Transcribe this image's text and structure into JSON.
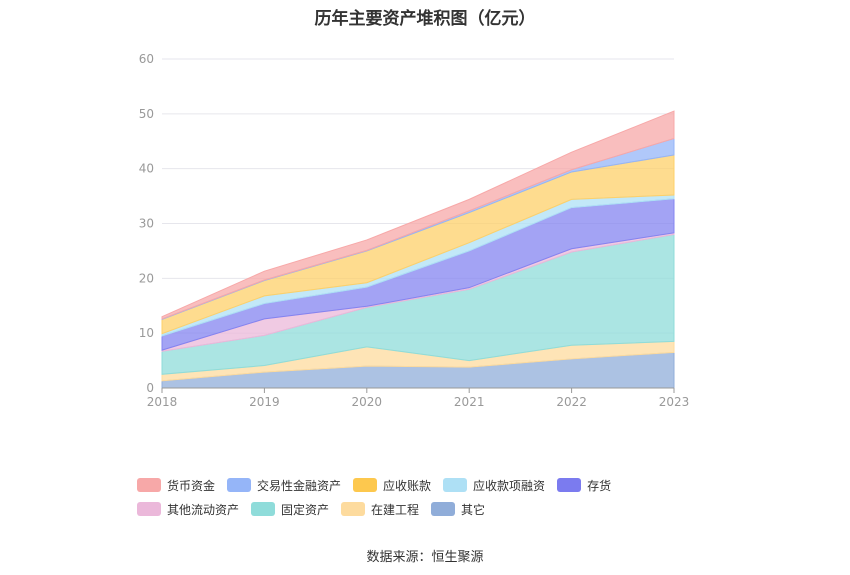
{
  "chart_data": {
    "type": "area",
    "stacked": true,
    "title": "历年主要资产堆积图（亿元）",
    "x": [
      "2018",
      "2019",
      "2020",
      "2021",
      "2022",
      "2023"
    ],
    "ylim": [
      0,
      60
    ],
    "yticks": [
      0,
      10,
      20,
      30,
      40,
      50,
      60
    ],
    "grid": true,
    "legend_position": "bottom",
    "series": [
      {
        "name": "其它",
        "color": "#90ADD9",
        "values": [
          1.3,
          2.9,
          4.0,
          3.8,
          5.3,
          6.5
        ]
      },
      {
        "name": "在建工程",
        "color": "#FDDB9E",
        "values": [
          1.2,
          1.2,
          3.5,
          1.2,
          2.5,
          2.0
        ]
      },
      {
        "name": "固定资产",
        "color": "#8FDCDA",
        "values": [
          4.2,
          5.5,
          7.2,
          13.0,
          17.0,
          19.5
        ]
      },
      {
        "name": "其他流动资产",
        "color": "#EBB8DA",
        "values": [
          0.2,
          3.0,
          0.2,
          0.3,
          0.6,
          0.3
        ]
      },
      {
        "name": "存货",
        "color": "#8484F0",
        "values": [
          2.6,
          2.8,
          3.5,
          6.7,
          7.5,
          6.2
        ]
      },
      {
        "name": "应收款项融资",
        "color": "#AEE0F5",
        "values": [
          0.4,
          1.4,
          0.8,
          1.5,
          1.5,
          0.7
        ]
      },
      {
        "name": "应收账款",
        "color": "#FDD06A",
        "values": [
          2.6,
          2.8,
          5.8,
          5.5,
          5.0,
          7.3
        ]
      },
      {
        "name": "交易性金融资产",
        "color": "#95B5F8",
        "values": [
          0.1,
          0.1,
          0.1,
          0.3,
          0.4,
          3.0
        ]
      },
      {
        "name": "货币资金",
        "color": "#F7A8A8",
        "values": [
          0.4,
          1.6,
          1.9,
          2.1,
          3.2,
          5.0
        ]
      }
    ]
  },
  "legend": [
    {
      "label": "货币资金",
      "color": "#F7A8A8"
    },
    {
      "label": "交易性金融资产",
      "color": "#95B5F8"
    },
    {
      "label": "应收账款",
      "color": "#FDC84E"
    },
    {
      "label": "应收款项融资",
      "color": "#AEE0F5"
    },
    {
      "label": "存货",
      "color": "#7B7BEF"
    },
    {
      "label": "其他流动资产",
      "color": "#EBB8DA"
    },
    {
      "label": "固定资产",
      "color": "#8FDCDA"
    },
    {
      "label": "在建工程",
      "color": "#FDDB9E"
    },
    {
      "label": "其它",
      "color": "#90ADD9"
    }
  ],
  "source": "数据来源：恒生聚源"
}
